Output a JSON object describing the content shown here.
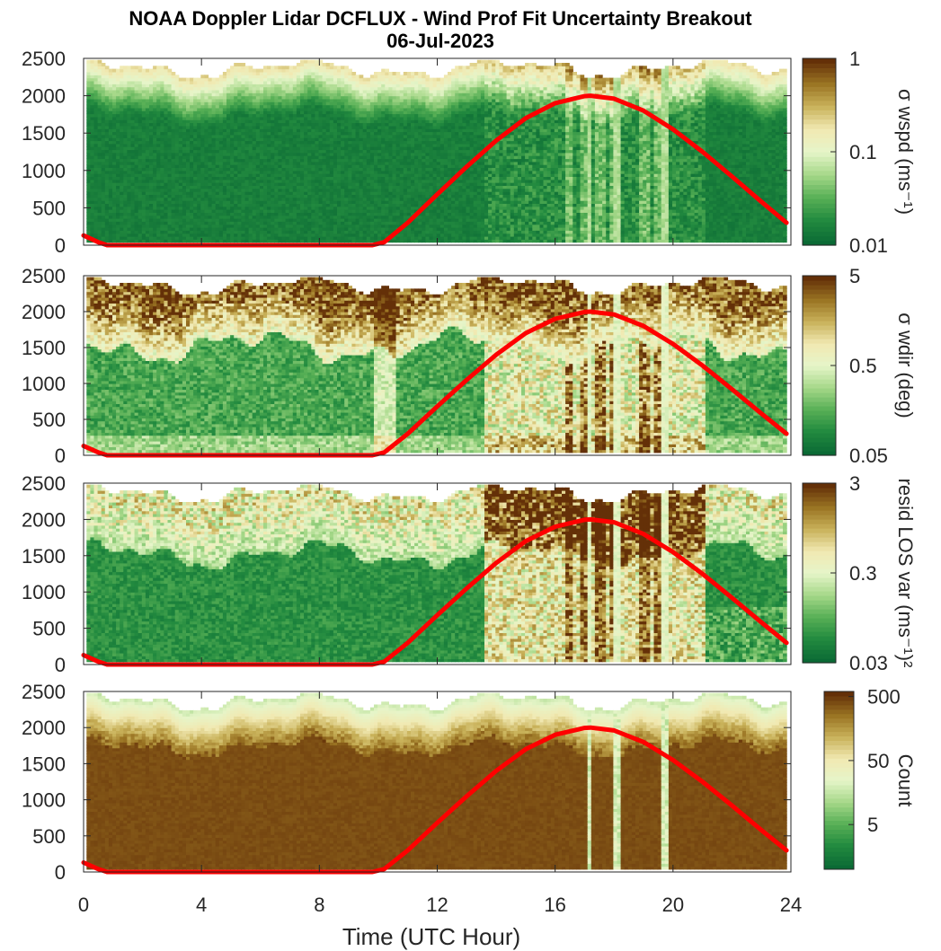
{
  "figure": {
    "title": "NOAA Doppler Lidar DCFLUX - Wind Prof Fit Uncertainty Breakout",
    "date": "06-Jul-2023",
    "xlabel": "Time (UTC Hour)"
  },
  "colors": {
    "sun_line": "#ff0000",
    "colormap": [
      "#0b6a35",
      "#228a3f",
      "#58b056",
      "#a6d889",
      "#e6f5c9",
      "#f1e9b2",
      "#c9b25a",
      "#9a7423",
      "#643008"
    ]
  },
  "chart_data": [
    {
      "type": "heatmap",
      "panel": "wspd",
      "colorbar_label": "σ wspd (ms⁻¹)",
      "colorbar_scale": "log",
      "clim": [
        0.01,
        1
      ],
      "colorbar_ticks": [
        "1",
        "0.1",
        "0.01"
      ],
      "xlim": [
        0,
        24
      ],
      "ylim": [
        0,
        2500
      ],
      "y_ticks": [
        0,
        500,
        1000,
        1500,
        2000,
        2500
      ],
      "x_ticks": [
        0,
        4,
        8,
        12,
        16,
        20,
        24
      ],
      "field_description": "low uncertainty (~0.01-0.02) below ~2200 m; higher near top and in columns around 16-20 UTC"
    },
    {
      "type": "heatmap",
      "panel": "wdir",
      "colorbar_label": "σ wdir (deg)",
      "colorbar_scale": "log",
      "clim": [
        0.05,
        5
      ],
      "colorbar_ticks": [
        "5",
        "0.5",
        "0.05"
      ],
      "xlim": [
        0,
        24
      ],
      "ylim": [
        0,
        2500
      ],
      "y_ticks": [
        0,
        500,
        1000,
        1500,
        2000,
        2500
      ],
      "x_ticks": [
        0,
        4,
        8,
        12,
        16,
        20,
        24
      ]
    },
    {
      "type": "heatmap",
      "panel": "resid",
      "colorbar_label": "resid LOS var (ms⁻¹)²",
      "colorbar_scale": "log",
      "clim": [
        0.03,
        3
      ],
      "colorbar_ticks": [
        "3",
        "0.3",
        "0.03"
      ],
      "xlim": [
        0,
        24
      ],
      "ylim": [
        0,
        2500
      ],
      "y_ticks": [
        0,
        500,
        1000,
        1500,
        2000,
        2500
      ],
      "x_ticks": [
        0,
        4,
        8,
        12,
        16,
        20,
        24
      ]
    },
    {
      "type": "heatmap",
      "panel": "count",
      "colorbar_label": "Count",
      "colorbar_scale": "log",
      "clim": [
        1,
        600
      ],
      "colorbar_ticks": [
        "500",
        "50",
        "5"
      ],
      "xlim": [
        0,
        24
      ],
      "ylim": [
        0,
        2500
      ],
      "y_ticks": [
        0,
        500,
        1000,
        1500,
        2000,
        2500
      ],
      "x_ticks": [
        0,
        4,
        8,
        12,
        16,
        20,
        24
      ]
    }
  ],
  "sun_curve": {
    "name": "",
    "x": [
      0,
      0.5,
      0.8,
      1,
      2,
      4,
      6,
      8,
      9,
      9.8,
      10.2,
      11,
      12,
      13,
      14,
      15,
      16,
      17,
      17.2,
      18,
      19,
      20,
      21,
      22,
      23,
      23.85
    ],
    "y": [
      130,
      40,
      0,
      0,
      0,
      0,
      0,
      0,
      0,
      0,
      40,
      300,
      680,
      1050,
      1400,
      1700,
      1900,
      1995,
      2000,
      1960,
      1800,
      1550,
      1250,
      920,
      580,
      300
    ]
  }
}
